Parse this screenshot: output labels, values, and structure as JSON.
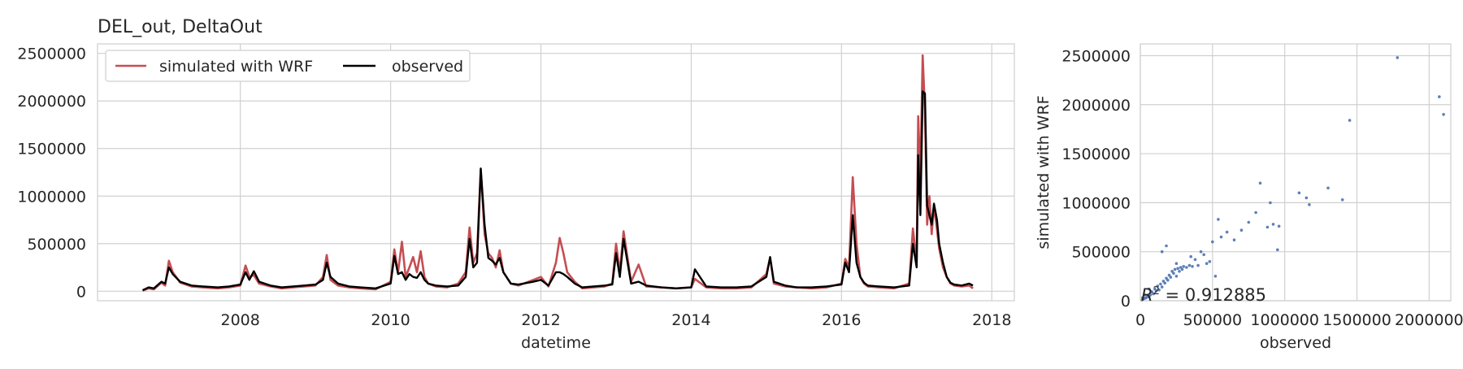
{
  "figure": {
    "title": "DEL_out, DeltaOut"
  },
  "chart_data": [
    {
      "type": "line",
      "title": "DEL_out, DeltaOut",
      "xlabel": "datetime",
      "ylabel": "",
      "xlim": [
        2006.1,
        2018.3
      ],
      "ylim": [
        -100000,
        2600000
      ],
      "xticks": [
        2008,
        2010,
        2012,
        2014,
        2016,
        2018
      ],
      "xtick_labels": [
        "2008",
        "2010",
        "2012",
        "2014",
        "2016",
        "2018"
      ],
      "yticks": [
        0,
        500000,
        1000000,
        1500000,
        2000000,
        2500000
      ],
      "ytick_labels": [
        "0",
        "500000",
        "1000000",
        "1500000",
        "2000000",
        "2500000"
      ],
      "grid": true,
      "legend": {
        "placement": "top-left",
        "columns": 2
      },
      "series": [
        {
          "name": "simulated with WRF",
          "color": "#c44e52",
          "x": [
            2006.7,
            2006.78,
            2006.85,
            2006.95,
            2007.0,
            2007.05,
            2007.1,
            2007.2,
            2007.35,
            2007.5,
            2007.7,
            2007.85,
            2008.0,
            2008.07,
            2008.12,
            2008.18,
            2008.25,
            2008.4,
            2008.55,
            2008.7,
            2008.85,
            2009.0,
            2009.1,
            2009.15,
            2009.2,
            2009.3,
            2009.45,
            2009.6,
            2009.8,
            2010.0,
            2010.05,
            2010.1,
            2010.15,
            2010.2,
            2010.25,
            2010.3,
            2010.35,
            2010.4,
            2010.45,
            2010.5,
            2010.6,
            2010.75,
            2010.9,
            2011.0,
            2011.05,
            2011.1,
            2011.15,
            2011.2,
            2011.25,
            2011.3,
            2011.35,
            2011.4,
            2011.45,
            2011.5,
            2011.6,
            2011.7,
            2011.9,
            2012.0,
            2012.1,
            2012.2,
            2012.25,
            2012.3,
            2012.35,
            2012.45,
            2012.55,
            2012.7,
            2012.85,
            2012.95,
            2013.0,
            2013.05,
            2013.1,
            2013.2,
            2013.3,
            2013.4,
            2013.6,
            2013.8,
            2014.0,
            2014.05,
            2014.2,
            2014.4,
            2014.6,
            2014.8,
            2015.0,
            2015.05,
            2015.1,
            2015.25,
            2015.4,
            2015.6,
            2015.8,
            2016.0,
            2016.05,
            2016.1,
            2016.15,
            2016.2,
            2016.25,
            2016.3,
            2016.35,
            2016.5,
            2016.7,
            2016.9,
            2016.95,
            2017.0,
            2017.02,
            2017.05,
            2017.08,
            2017.11,
            2017.14,
            2017.17,
            2017.2,
            2017.23,
            2017.27,
            2017.3,
            2017.35,
            2017.4,
            2017.45,
            2017.5,
            2017.6,
            2017.7,
            2017.75
          ],
          "values": [
            5000,
            30000,
            20000,
            90000,
            60000,
            320000,
            200000,
            90000,
            50000,
            40000,
            30000,
            40000,
            60000,
            270000,
            150000,
            170000,
            80000,
            50000,
            30000,
            40000,
            50000,
            60000,
            150000,
            380000,
            120000,
            60000,
            40000,
            30000,
            20000,
            100000,
            440000,
            200000,
            520000,
            150000,
            250000,
            360000,
            200000,
            420000,
            150000,
            80000,
            50000,
            40000,
            80000,
            200000,
            670000,
            300000,
            400000,
            1280000,
            600000,
            400000,
            350000,
            250000,
            430000,
            200000,
            80000,
            60000,
            120000,
            150000,
            50000,
            300000,
            560000,
            400000,
            200000,
            100000,
            30000,
            40000,
            50000,
            80000,
            500000,
            200000,
            630000,
            100000,
            280000,
            50000,
            40000,
            30000,
            40000,
            130000,
            40000,
            30000,
            30000,
            40000,
            180000,
            350000,
            80000,
            50000,
            40000,
            30000,
            40000,
            80000,
            340000,
            250000,
            1200000,
            500000,
            150000,
            80000,
            50000,
            40000,
            30000,
            80000,
            660000,
            300000,
            1840000,
            1200000,
            2480000,
            1900000,
            700000,
            1000000,
            600000,
            900000,
            650000,
            450000,
            250000,
            150000,
            80000,
            60000,
            50000,
            60000,
            30000
          ]
        },
        {
          "name": "observed",
          "color": "#000000",
          "x": [
            2006.7,
            2006.78,
            2006.85,
            2006.95,
            2007.0,
            2007.05,
            2007.1,
            2007.2,
            2007.35,
            2007.5,
            2007.7,
            2007.85,
            2008.0,
            2008.07,
            2008.12,
            2008.18,
            2008.25,
            2008.4,
            2008.55,
            2008.7,
            2008.85,
            2009.0,
            2009.1,
            2009.15,
            2009.2,
            2009.3,
            2009.45,
            2009.6,
            2009.8,
            2010.0,
            2010.05,
            2010.1,
            2010.15,
            2010.2,
            2010.25,
            2010.3,
            2010.35,
            2010.4,
            2010.45,
            2010.5,
            2010.6,
            2010.75,
            2010.9,
            2011.0,
            2011.05,
            2011.1,
            2011.15,
            2011.2,
            2011.25,
            2011.3,
            2011.35,
            2011.4,
            2011.45,
            2011.5,
            2011.6,
            2011.7,
            2011.9,
            2012.0,
            2012.1,
            2012.2,
            2012.25,
            2012.3,
            2012.35,
            2012.45,
            2012.55,
            2012.7,
            2012.85,
            2012.95,
            2013.0,
            2013.05,
            2013.1,
            2013.2,
            2013.3,
            2013.4,
            2013.6,
            2013.8,
            2014.0,
            2014.05,
            2014.2,
            2014.4,
            2014.6,
            2014.8,
            2015.0,
            2015.05,
            2015.1,
            2015.25,
            2015.4,
            2015.6,
            2015.8,
            2016.0,
            2016.05,
            2016.1,
            2016.15,
            2016.2,
            2016.25,
            2016.3,
            2016.35,
            2016.5,
            2016.7,
            2016.9,
            2016.95,
            2017.0,
            2017.02,
            2017.05,
            2017.08,
            2017.11,
            2017.14,
            2017.17,
            2017.2,
            2017.23,
            2017.27,
            2017.3,
            2017.35,
            2017.4,
            2017.45,
            2017.5,
            2017.6,
            2017.7,
            2017.75
          ],
          "values": [
            10000,
            40000,
            30000,
            100000,
            80000,
            250000,
            180000,
            100000,
            60000,
            50000,
            40000,
            50000,
            70000,
            200000,
            120000,
            210000,
            100000,
            60000,
            40000,
            50000,
            60000,
            70000,
            120000,
            300000,
            150000,
            80000,
            50000,
            40000,
            30000,
            80000,
            370000,
            180000,
            200000,
            120000,
            180000,
            150000,
            140000,
            200000,
            120000,
            80000,
            60000,
            50000,
            60000,
            150000,
            550000,
            250000,
            300000,
            1290000,
            700000,
            350000,
            320000,
            280000,
            350000,
            200000,
            80000,
            70000,
            100000,
            120000,
            60000,
            200000,
            200000,
            180000,
            150000,
            80000,
            40000,
            50000,
            60000,
            70000,
            400000,
            150000,
            550000,
            80000,
            100000,
            60000,
            40000,
            30000,
            40000,
            230000,
            50000,
            40000,
            40000,
            50000,
            150000,
            360000,
            100000,
            60000,
            40000,
            40000,
            50000,
            70000,
            300000,
            200000,
            800000,
            300000,
            150000,
            90000,
            60000,
            50000,
            40000,
            60000,
            500000,
            250000,
            1430000,
            800000,
            2100000,
            2080000,
            900000,
            800000,
            700000,
            920000,
            750000,
            500000,
            300000,
            150000,
            90000,
            70000,
            60000,
            80000,
            60000
          ]
        }
      ]
    },
    {
      "type": "scatter",
      "title": "",
      "xlabel": "observed",
      "ylabel": "simulated with WRF",
      "xlim": [
        0,
        2150000
      ],
      "ylim": [
        0,
        2620000
      ],
      "xticks": [
        0,
        500000,
        1000000,
        1500000,
        2000000
      ],
      "xtick_labels": [
        "0",
        "500000",
        "1000000",
        "1500000",
        "2000000"
      ],
      "yticks": [
        0,
        500000,
        1000000,
        1500000,
        2000000,
        2500000
      ],
      "ytick_labels": [
        "0",
        "500000",
        "1000000",
        "1500000",
        "2000000",
        "2500000"
      ],
      "grid": true,
      "point_color": "#4c72b0",
      "annotation": {
        "text_prefix": "R",
        "text_suffix": " = 0.912885",
        "value": 0.912885
      },
      "points": [
        [
          10000,
          5000
        ],
        [
          20000,
          15000
        ],
        [
          30000,
          25000
        ],
        [
          40000,
          30000
        ],
        [
          50000,
          45000
        ],
        [
          60000,
          40000
        ],
        [
          70000,
          60000
        ],
        [
          80000,
          90000
        ],
        [
          90000,
          70000
        ],
        [
          100000,
          120000
        ],
        [
          110000,
          100000
        ],
        [
          120000,
          150000
        ],
        [
          130000,
          110000
        ],
        [
          140000,
          170000
        ],
        [
          150000,
          140000
        ],
        [
          160000,
          200000
        ],
        [
          170000,
          180000
        ],
        [
          180000,
          230000
        ],
        [
          190000,
          210000
        ],
        [
          200000,
          260000
        ],
        [
          210000,
          240000
        ],
        [
          220000,
          300000
        ],
        [
          230000,
          280000
        ],
        [
          240000,
          320000
        ],
        [
          250000,
          250000
        ],
        [
          260000,
          330000
        ],
        [
          270000,
          300000
        ],
        [
          280000,
          340000
        ],
        [
          290000,
          320000
        ],
        [
          300000,
          350000
        ],
        [
          320000,
          340000
        ],
        [
          340000,
          360000
        ],
        [
          360000,
          350000
        ],
        [
          380000,
          420000
        ],
        [
          400000,
          360000
        ],
        [
          420000,
          500000
        ],
        [
          440000,
          470000
        ],
        [
          460000,
          380000
        ],
        [
          480000,
          400000
        ],
        [
          500000,
          600000
        ],
        [
          520000,
          250000
        ],
        [
          540000,
          830000
        ],
        [
          560000,
          650000
        ],
        [
          600000,
          700000
        ],
        [
          650000,
          620000
        ],
        [
          700000,
          720000
        ],
        [
          750000,
          800000
        ],
        [
          800000,
          900000
        ],
        [
          830000,
          1200000
        ],
        [
          880000,
          750000
        ],
        [
          900000,
          1000000
        ],
        [
          920000,
          780000
        ],
        [
          950000,
          520000
        ],
        [
          960000,
          760000
        ],
        [
          1100000,
          1100000
        ],
        [
          1150000,
          1050000
        ],
        [
          1170000,
          980000
        ],
        [
          1300000,
          1150000
        ],
        [
          1400000,
          1030000
        ],
        [
          1450000,
          1840000
        ],
        [
          1780000,
          2480000
        ],
        [
          2070000,
          2080000
        ],
        [
          2100000,
          1900000
        ],
        [
          180000,
          560000
        ],
        [
          150000,
          500000
        ],
        [
          60000,
          120000
        ],
        [
          30000,
          60000
        ],
        [
          15000,
          30000
        ],
        [
          250000,
          380000
        ],
        [
          350000,
          450000
        ]
      ]
    }
  ]
}
